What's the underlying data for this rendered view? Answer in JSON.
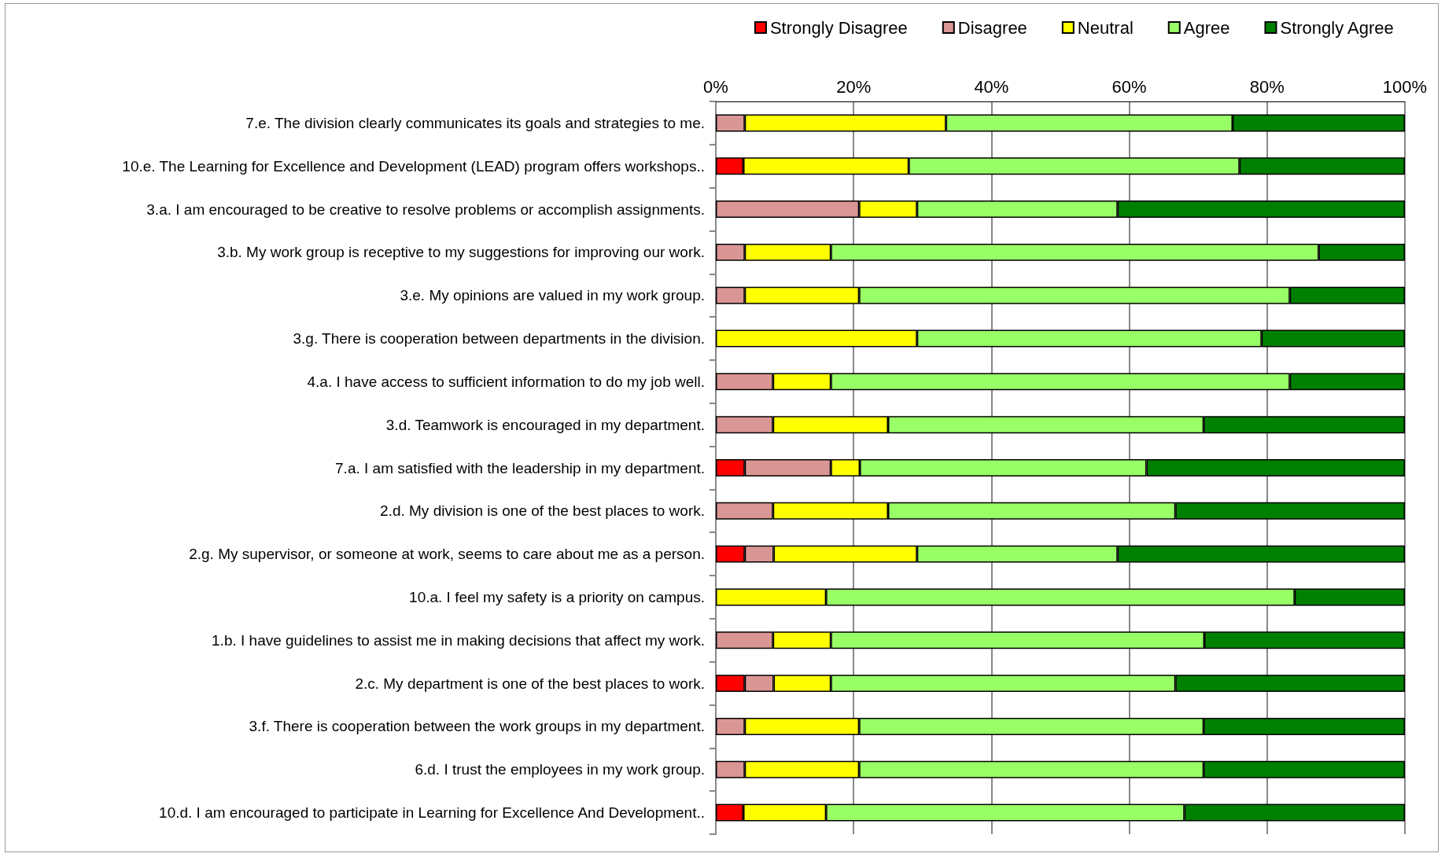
{
  "chart_data": {
    "type": "bar",
    "orientation": "horizontal",
    "stacked": true,
    "categories": [
      "7.e. The division clearly communicates its goals and strategies to me.",
      "10.e. The Learning for Excellence and Development (LEAD) program offers workshops..",
      "3.a. I am encouraged to be creative to resolve problems or accomplish assignments.",
      "3.b. My work group is receptive to my suggestions for improving our work.",
      "3.e. My opinions are valued in my work group.",
      "3.g. There is cooperation between departments in the division.",
      "4.a. I have access to sufficient information to do my job well.",
      "3.d. Teamwork is encouraged in my department.",
      "7.a. I am satisfied with the leadership in my department.",
      "2.d. My division is one of the best places to work.",
      "2.g. My supervisor, or someone at work, seems to care about me as a person.",
      "10.a. I feel my safety is a priority on campus.",
      "1.b. I have guidelines to assist me in making decisions that affect my work.",
      "2.c. My department is one of the best places to work.",
      "3.f. There is cooperation between the work groups in my department.",
      "6.d. I trust the employees in my work group.",
      "10.d. I am encouraged to participate in Learning for Excellence And Development.."
    ],
    "series": [
      {
        "name": "Strongly Disagree",
        "color": "#ff0000",
        "values": [
          null,
          4,
          null,
          null,
          null,
          null,
          null,
          null,
          4.2,
          null,
          4.2,
          null,
          null,
          4.2,
          null,
          null,
          4
        ]
      },
      {
        "name": "Disagree",
        "color": "#da9694",
        "values": [
          4.2,
          null,
          20.8,
          4.2,
          4.2,
          null,
          8.3,
          8.3,
          12.5,
          8.3,
          4.2,
          null,
          8.3,
          4.2,
          4.2,
          4.2,
          null
        ]
      },
      {
        "name": "Neutral",
        "color": "#ffff00",
        "values": [
          29.2,
          24,
          8.4,
          12.5,
          16.6,
          29.2,
          8.4,
          16.7,
          4.2,
          16.7,
          20.8,
          16,
          8.4,
          8.3,
          16.6,
          16.6,
          12
        ]
      },
      {
        "name": "Agree",
        "color": "#99ff66",
        "values": [
          41.6,
          48,
          29.1,
          70.8,
          62.5,
          50,
          66.6,
          45.8,
          41.6,
          41.7,
          29.1,
          68,
          54.2,
          50,
          50,
          50,
          52
        ]
      },
      {
        "name": "Strongly Agree",
        "color": "#008000",
        "values": [
          25,
          24,
          41.7,
          12.5,
          16.7,
          20.8,
          16.7,
          29.2,
          37.5,
          33.3,
          41.7,
          16,
          29.1,
          33.3,
          29.2,
          29.2,
          32
        ]
      }
    ],
    "xlim": [
      0,
      100
    ],
    "xticks": [
      {
        "value": 0,
        "label": "0%"
      },
      {
        "value": 20,
        "label": "20%"
      },
      {
        "value": 40,
        "label": "40%"
      },
      {
        "value": 60,
        "label": "60%"
      },
      {
        "value": 80,
        "label": "80%"
      },
      {
        "value": 100,
        "label": "100%"
      }
    ],
    "grid": "x",
    "legend": "top right"
  }
}
